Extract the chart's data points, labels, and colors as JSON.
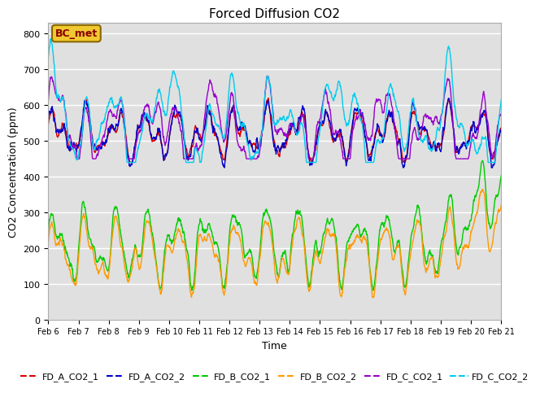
{
  "title": "Forced Diffusion CO2",
  "xlabel": "Time",
  "ylabel": "CO2 Concentration (ppm)",
  "ylim": [
    0,
    830
  ],
  "yticks": [
    0,
    100,
    200,
    300,
    400,
    500,
    600,
    700,
    800
  ],
  "bg_color": "#e0e0e0",
  "fig_bg": "#ffffff",
  "annotation_text": "BC_met",
  "annotation_box_color": "#f0c830",
  "annotation_text_color": "#880000",
  "series": [
    {
      "label": "FD_A_CO2_1",
      "color": "#dd0000",
      "linewidth": 1.0
    },
    {
      "label": "FD_A_CO2_2",
      "color": "#0000cc",
      "linewidth": 1.0
    },
    {
      "label": "FD_B_CO2_1",
      "color": "#00cc00",
      "linewidth": 1.0
    },
    {
      "label": "FD_B_CO2_2",
      "color": "#ff9900",
      "linewidth": 1.0
    },
    {
      "label": "FD_C_CO2_1",
      "color": "#9900cc",
      "linewidth": 1.0
    },
    {
      "label": "FD_C_CO2_2",
      "color": "#00ccee",
      "linewidth": 1.0
    }
  ],
  "xtick_labels": [
    "Feb 6",
    "Feb 7",
    "Feb 8",
    "Feb 9",
    "Feb 10",
    "Feb 11",
    "Feb 12",
    "Feb 13",
    "Feb 14",
    "Feb 15",
    "Feb 16",
    "Feb 17",
    "Feb 18",
    "Feb 19",
    "Feb 20",
    "Feb 21"
  ],
  "n_points": 1500,
  "legend_ncol": 6,
  "grid_color": "#ffffff",
  "grid_linewidth": 1.0
}
